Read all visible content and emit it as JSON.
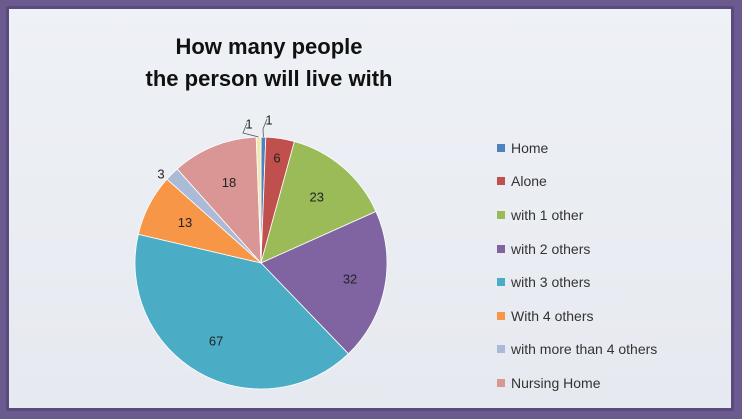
{
  "chart_data": {
    "type": "pie",
    "title_lines": [
      "How many people",
      "the person will live with"
    ],
    "categories": [
      "Home",
      "Alone",
      "with 1 other",
      "with 2 others",
      "with 3 others",
      "With 4 others",
      "with more than 4 others",
      "Nursing Home"
    ],
    "values": [
      1,
      6,
      23,
      32,
      67,
      13,
      3,
      18
    ],
    "extra_slice": {
      "value": 1,
      "color": "#f2e7b0"
    },
    "colors": [
      "#4f81bd",
      "#c0504d",
      "#9bbb59",
      "#8064a2",
      "#4bacc6",
      "#f79646",
      "#aabad7",
      "#d99694"
    ],
    "legend_position": "right"
  }
}
